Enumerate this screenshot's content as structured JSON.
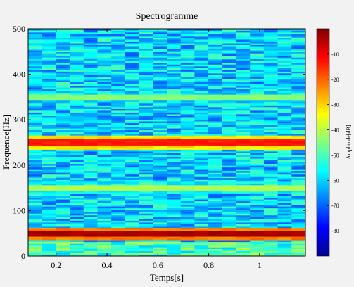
{
  "chart_data": {
    "type": "heatmap",
    "title": "Spectrogramme",
    "xlabel": "Temps[s]",
    "ylabel": "Frequence[Hz]",
    "xlim": [
      0.09,
      1.18
    ],
    "ylim": [
      0,
      500
    ],
    "x_ticks": [
      0.2,
      0.4,
      0.6,
      0.8,
      1
    ],
    "x_tick_labels": [
      "0.2",
      "0.4",
      "0.6",
      "0.8",
      "1"
    ],
    "y_ticks": [
      0,
      100,
      200,
      300,
      400,
      500
    ],
    "y_tick_labels": [
      "0",
      "100",
      "200",
      "300",
      "400",
      "500"
    ],
    "colorbar": {
      "label": "Amplitude[dB]",
      "range": [
        -90,
        0
      ],
      "ticks": [
        -80,
        -70,
        -60,
        -50,
        -40,
        -30,
        -20,
        -10
      ],
      "tick_labels": [
        "-80",
        "-70",
        "-60",
        "-50",
        "-40",
        "-30",
        "-20",
        "-10"
      ],
      "colormap": "jet"
    },
    "noise_floor_db": -60,
    "tone_bands": [
      {
        "frequency_hz": 50,
        "amplitude_db": -5
      },
      {
        "frequency_hz": 250,
        "amplitude_db": -15
      },
      {
        "frequency_hz": 150,
        "amplitude_db": -42
      },
      {
        "frequency_hz": 350,
        "amplitude_db": -46
      }
    ],
    "grid": false
  }
}
